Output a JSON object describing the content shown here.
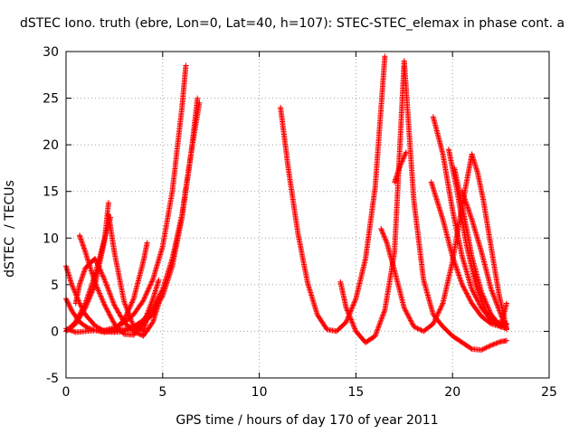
{
  "chart_data": {
    "type": "scatter",
    "title": "dSTEC Iono. truth (ebre, Lon=0, Lat=40, h=107): STEC-STEC_elemax in phase cont. a",
    "xlabel": "GPS time / hours of day 170 of year 2011",
    "ylabel": "dSTEC  / TECUs",
    "xlim": [
      0,
      25
    ],
    "ylim": [
      -5,
      30
    ],
    "xticks": [
      "0",
      "5",
      "10",
      "15",
      "20",
      "25"
    ],
    "yticks": [
      "-5",
      "0",
      "5",
      "10",
      "15",
      "20",
      "25",
      "30"
    ],
    "grid": true,
    "marker": "+",
    "color": "#ff0000",
    "series": [
      {
        "x": [
          0.0,
          0.5,
          1.0,
          1.5,
          2.0,
          2.5,
          3.0,
          3.5,
          4.0,
          4.5,
          5.0,
          5.5,
          6.0,
          6.2
        ],
        "y": [
          0.3,
          -0.1,
          0.0,
          0.1,
          0.1,
          0.4,
          0.9,
          1.8,
          3.3,
          5.6,
          9.1,
          15.0,
          24.0,
          28.5
        ]
      },
      {
        "x": [
          0.0,
          0.3,
          0.7,
          1.1,
          1.5,
          2.0,
          2.5,
          3.0,
          3.5,
          4.0,
          4.5,
          5.0,
          5.5,
          6.0,
          6.5,
          6.8
        ],
        "y": [
          3.5,
          2.2,
          1.0,
          0.4,
          0.1,
          -0.1,
          0.0,
          0.2,
          0.5,
          1.2,
          2.5,
          4.5,
          7.8,
          12.5,
          19.5,
          25.0
        ]
      },
      {
        "x": [
          0.0,
          0.3,
          0.7,
          1.0,
          1.5,
          2.0,
          2.5,
          3.0,
          3.5,
          4.0,
          4.5,
          5.0,
          5.5,
          6.0,
          6.5,
          6.9
        ],
        "y": [
          7.0,
          5.0,
          3.0,
          1.8,
          0.6,
          0.0,
          -0.1,
          0.0,
          0.3,
          0.8,
          1.9,
          3.8,
          7.0,
          12.2,
          19.5,
          24.5
        ]
      },
      {
        "x": [
          0.0,
          0.5,
          1.0,
          1.5,
          2.0,
          2.2
        ],
        "y": [
          0.0,
          0.8,
          2.5,
          5.0,
          9.8,
          13.8
        ]
      },
      {
        "x": [
          0.0,
          0.5,
          1.0,
          1.5,
          2.0,
          2.3
        ],
        "y": [
          0.0,
          1.0,
          3.0,
          6.0,
          10.0,
          12.2
        ]
      },
      {
        "x": [
          0.5,
          0.7,
          1.0,
          1.5,
          2.0,
          2.5,
          3.0,
          3.5,
          4.0,
          4.5,
          4.8
        ],
        "y": [
          3.0,
          5.0,
          6.8,
          7.8,
          5.5,
          2.8,
          1.0,
          0.0,
          -0.5,
          1.0,
          3.0
        ]
      },
      {
        "x": [
          0.7,
          1.0,
          1.5,
          2.0,
          2.5,
          3.0,
          3.5,
          4.0,
          4.5,
          4.8
        ],
        "y": [
          10.3,
          8.5,
          5.2,
          2.8,
          0.8,
          -0.3,
          -0.4,
          0.8,
          3.5,
          5.5
        ]
      },
      {
        "x": [
          2.2,
          2.5,
          3.0,
          3.5,
          4.0,
          4.2
        ],
        "y": [
          12.5,
          8.5,
          3.2,
          0.5,
          0.0,
          1.5
        ]
      },
      {
        "x": [
          1.8,
          2.5,
          3.0,
          3.5,
          4.0,
          4.2
        ],
        "y": [
          0.0,
          0.2,
          1.2,
          3.5,
          7.5,
          9.5
        ]
      },
      {
        "x": [
          11.1,
          11.5,
          12.0,
          12.5,
          13.0,
          13.5,
          14.0,
          14.5,
          15.0,
          15.5,
          16.0,
          16.5
        ],
        "y": [
          24.0,
          17.5,
          10.5,
          5.2,
          1.8,
          0.2,
          0.0,
          1.0,
          3.5,
          7.8,
          15.5,
          29.5
        ]
      },
      {
        "x": [
          14.2,
          14.5,
          15.0,
          15.5,
          16.0,
          16.5,
          17.0,
          17.5,
          18.0,
          18.5,
          19.0,
          19.5,
          20.0,
          20.5,
          21.0,
          21.5,
          22.0,
          22.5,
          22.8
        ],
        "y": [
          5.3,
          2.5,
          0.0,
          -1.2,
          -0.5,
          2.3,
          8.5,
          29.0,
          14.0,
          5.5,
          1.8,
          0.5,
          -0.5,
          -1.2,
          -1.9,
          -2.0,
          -1.5,
          -1.1,
          -1.0
        ]
      },
      {
        "x": [
          16.3,
          16.6,
          17.0,
          17.5,
          18.0,
          18.5,
          19.0,
          19.5,
          20.0,
          20.5,
          21.0
        ],
        "y": [
          11.0,
          9.5,
          6.5,
          2.5,
          0.5,
          0.0,
          0.8,
          3.0,
          7.5,
          13.5,
          19.0
        ]
      },
      {
        "x": [
          17.0,
          17.3,
          17.6
        ],
        "y": [
          16.0,
          17.8,
          19.2
        ]
      },
      {
        "x": [
          19.0,
          19.5,
          20.0,
          20.5,
          21.0,
          21.5,
          22.0,
          22.5,
          22.8
        ],
        "y": [
          23.0,
          19.0,
          13.0,
          8.0,
          4.5,
          2.5,
          1.2,
          0.5,
          0.8
        ]
      },
      {
        "x": [
          18.9,
          19.5,
          20.0,
          20.5,
          21.0,
          21.5,
          22.0,
          22.5,
          22.8
        ],
        "y": [
          16.0,
          12.0,
          8.0,
          5.0,
          3.0,
          1.6,
          0.8,
          0.5,
          3.0
        ]
      },
      {
        "x": [
          19.8,
          20.2,
          20.7,
          21.2,
          21.7,
          22.2,
          22.8
        ],
        "y": [
          19.5,
          15.5,
          9.5,
          5.0,
          2.2,
          1.0,
          0.8
        ]
      },
      {
        "x": [
          20.1,
          20.5,
          21.0,
          21.5,
          22.0,
          22.5,
          22.8
        ],
        "y": [
          17.5,
          13.5,
          8.0,
          4.2,
          1.8,
          0.5,
          0.3
        ]
      },
      {
        "x": [
          20.5,
          21.0,
          21.5,
          22.0,
          22.5,
          22.8
        ],
        "y": [
          15.0,
          12.0,
          8.5,
          4.5,
          1.8,
          0.2
        ]
      },
      {
        "x": [
          21.0,
          21.3,
          21.6,
          22.0,
          22.4,
          22.8
        ],
        "y": [
          19.0,
          17.0,
          14.0,
          9.0,
          4.0,
          0.3
        ]
      }
    ]
  }
}
